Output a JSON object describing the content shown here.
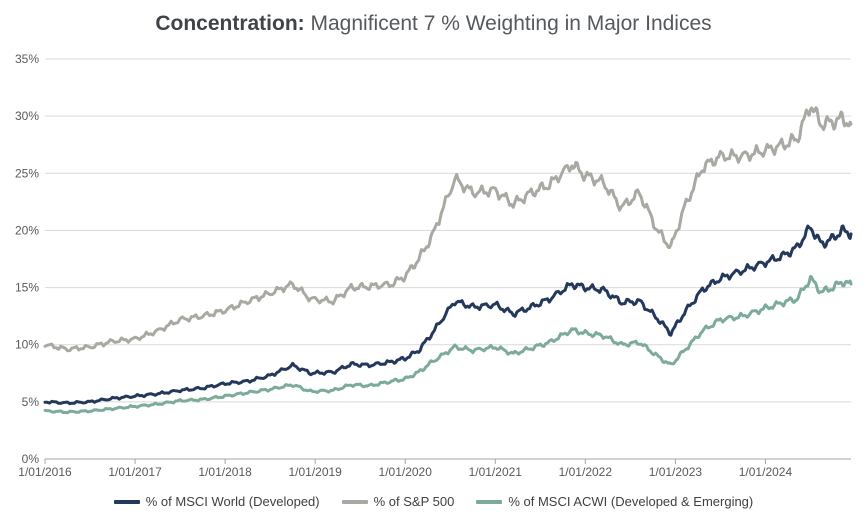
{
  "header": {
    "title_bold": "Concentration:",
    "title_rest": "Magnificent 7 % Weighting in Major Indices"
  },
  "colors": {
    "world": "#24385b",
    "sp500": "#a9a9a3",
    "acwi": "#7cab9a",
    "grid": "#d9d9d9",
    "axis": "#a6a6a6"
  },
  "chart_data": {
    "type": "line",
    "title": "Concentration: Magnificent 7 % Weighting in Major Indices",
    "xlabel": "",
    "ylabel": "",
    "ylim": [
      0,
      35
    ],
    "yticks": [
      0,
      5,
      10,
      15,
      20,
      25,
      30,
      35
    ],
    "ytick_labels": [
      "0%",
      "5%",
      "10%",
      "15%",
      "20%",
      "25%",
      "30%",
      "35%"
    ],
    "xlim": [
      2016.0,
      2024.95
    ],
    "xticks": [
      2016,
      2017,
      2018,
      2019,
      2020,
      2021,
      2022,
      2023,
      2024
    ],
    "xtick_labels": [
      "1/01/2016",
      "1/01/2017",
      "1/01/2018",
      "1/01/2019",
      "1/01/2020",
      "1/01/2021",
      "1/01/2022",
      "1/01/2023",
      "1/01/2024"
    ],
    "grid": true,
    "legend": "bottom",
    "series": [
      {
        "name": "% of MSCI World (Developed)",
        "color_key": "world",
        "points": [
          [
            2016.0,
            5.0
          ],
          [
            2016.25,
            4.9
          ],
          [
            2016.5,
            5.0
          ],
          [
            2016.75,
            5.3
          ],
          [
            2017.0,
            5.5
          ],
          [
            2017.25,
            5.7
          ],
          [
            2017.5,
            6.0
          ],
          [
            2017.75,
            6.2
          ],
          [
            2018.0,
            6.6
          ],
          [
            2018.25,
            6.8
          ],
          [
            2018.5,
            7.3
          ],
          [
            2018.75,
            8.2
          ],
          [
            2018.95,
            7.5
          ],
          [
            2019.2,
            7.6
          ],
          [
            2019.4,
            8.3
          ],
          [
            2019.6,
            8.2
          ],
          [
            2019.85,
            8.5
          ],
          [
            2020.0,
            8.8
          ],
          [
            2020.15,
            9.5
          ],
          [
            2020.3,
            11.0
          ],
          [
            2020.55,
            13.8
          ],
          [
            2020.75,
            13.3
          ],
          [
            2021.0,
            13.5
          ],
          [
            2021.2,
            12.7
          ],
          [
            2021.4,
            13.3
          ],
          [
            2021.6,
            14.0
          ],
          [
            2021.85,
            15.3
          ],
          [
            2022.0,
            15.0
          ],
          [
            2022.2,
            14.8
          ],
          [
            2022.4,
            13.7
          ],
          [
            2022.6,
            13.8
          ],
          [
            2022.8,
            12.3
          ],
          [
            2022.95,
            11.0
          ],
          [
            2023.1,
            12.8
          ],
          [
            2023.3,
            14.8
          ],
          [
            2023.5,
            15.8
          ],
          [
            2023.75,
            16.5
          ],
          [
            2024.0,
            17.2
          ],
          [
            2024.2,
            17.8
          ],
          [
            2024.35,
            18.5
          ],
          [
            2024.5,
            20.3
          ],
          [
            2024.62,
            18.8
          ],
          [
            2024.75,
            19.3
          ],
          [
            2024.85,
            20.0
          ],
          [
            2024.95,
            19.7
          ]
        ]
      },
      {
        "name": "% of S&P 500",
        "color_key": "sp500",
        "points": [
          [
            2016.0,
            10.0
          ],
          [
            2016.25,
            9.6
          ],
          [
            2016.5,
            9.8
          ],
          [
            2016.75,
            10.3
          ],
          [
            2017.0,
            10.5
          ],
          [
            2017.25,
            11.2
          ],
          [
            2017.5,
            12.2
          ],
          [
            2017.75,
            12.5
          ],
          [
            2018.0,
            13.0
          ],
          [
            2018.25,
            13.8
          ],
          [
            2018.5,
            14.5
          ],
          [
            2018.75,
            15.3
          ],
          [
            2018.95,
            14.0
          ],
          [
            2019.2,
            13.8
          ],
          [
            2019.4,
            15.0
          ],
          [
            2019.6,
            15.1
          ],
          [
            2019.85,
            15.3
          ],
          [
            2020.0,
            16.0
          ],
          [
            2020.15,
            17.5
          ],
          [
            2020.3,
            19.5
          ],
          [
            2020.55,
            24.5
          ],
          [
            2020.75,
            23.3
          ],
          [
            2021.0,
            23.5
          ],
          [
            2021.2,
            22.3
          ],
          [
            2021.4,
            23.3
          ],
          [
            2021.6,
            24.0
          ],
          [
            2021.85,
            25.8
          ],
          [
            2022.0,
            24.8
          ],
          [
            2022.2,
            24.2
          ],
          [
            2022.4,
            22.0
          ],
          [
            2022.6,
            23.3
          ],
          [
            2022.8,
            20.0
          ],
          [
            2022.95,
            18.5
          ],
          [
            2023.1,
            22.0
          ],
          [
            2023.3,
            25.5
          ],
          [
            2023.5,
            26.5
          ],
          [
            2023.75,
            26.5
          ],
          [
            2024.0,
            27.0
          ],
          [
            2024.2,
            27.5
          ],
          [
            2024.35,
            28.0
          ],
          [
            2024.5,
            31.0
          ],
          [
            2024.62,
            29.3
          ],
          [
            2024.75,
            29.5
          ],
          [
            2024.85,
            29.8
          ],
          [
            2024.95,
            29.3
          ]
        ]
      },
      {
        "name": "% of MSCI ACWI (Developed & Emerging)",
        "color_key": "acwi",
        "points": [
          [
            2016.0,
            4.2
          ],
          [
            2016.25,
            4.1
          ],
          [
            2016.5,
            4.2
          ],
          [
            2016.75,
            4.4
          ],
          [
            2017.0,
            4.6
          ],
          [
            2017.25,
            4.8
          ],
          [
            2017.5,
            5.1
          ],
          [
            2017.75,
            5.2
          ],
          [
            2018.0,
            5.5
          ],
          [
            2018.25,
            5.8
          ],
          [
            2018.5,
            6.1
          ],
          [
            2018.75,
            6.5
          ],
          [
            2018.95,
            5.9
          ],
          [
            2019.2,
            6.0
          ],
          [
            2019.4,
            6.5
          ],
          [
            2019.6,
            6.4
          ],
          [
            2019.85,
            6.8
          ],
          [
            2020.0,
            7.0
          ],
          [
            2020.15,
            7.6
          ],
          [
            2020.3,
            8.5
          ],
          [
            2020.55,
            9.8
          ],
          [
            2020.75,
            9.5
          ],
          [
            2021.0,
            9.8
          ],
          [
            2021.2,
            9.2
          ],
          [
            2021.4,
            9.7
          ],
          [
            2021.6,
            10.2
          ],
          [
            2021.85,
            11.3
          ],
          [
            2022.0,
            11.0
          ],
          [
            2022.2,
            10.8
          ],
          [
            2022.4,
            10.0
          ],
          [
            2022.6,
            10.2
          ],
          [
            2022.8,
            9.0
          ],
          [
            2022.95,
            8.2
          ],
          [
            2023.1,
            9.5
          ],
          [
            2023.3,
            11.2
          ],
          [
            2023.5,
            12.2
          ],
          [
            2023.75,
            12.5
          ],
          [
            2024.0,
            13.2
          ],
          [
            2024.2,
            13.7
          ],
          [
            2024.35,
            14.0
          ],
          [
            2024.5,
            15.8
          ],
          [
            2024.62,
            14.6
          ],
          [
            2024.75,
            15.0
          ],
          [
            2024.85,
            15.5
          ],
          [
            2024.95,
            15.3
          ]
        ]
      }
    ]
  }
}
